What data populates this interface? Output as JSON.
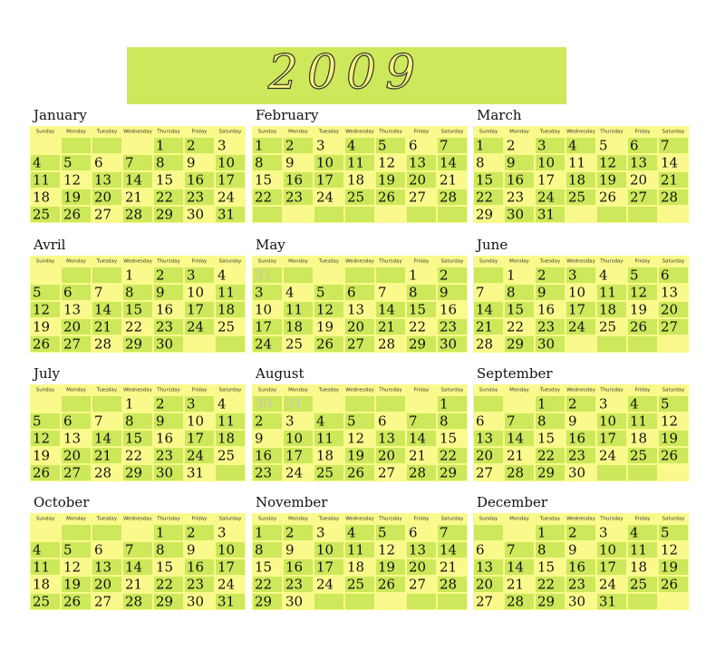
{
  "title": "2009",
  "day_headers": [
    "Sunday",
    "Monday",
    "Tuesday",
    "Wednesday",
    "Thursday",
    "Friday",
    "Saturday"
  ],
  "months": [
    {
      "name": "January",
      "weeks": [
        [
          null,
          null,
          null,
          null,
          1,
          2,
          3
        ],
        [
          4,
          5,
          6,
          7,
          8,
          9,
          10
        ],
        [
          11,
          12,
          13,
          14,
          15,
          16,
          17
        ],
        [
          18,
          19,
          20,
          21,
          22,
          23,
          24
        ],
        [
          25,
          26,
          27,
          28,
          29,
          30,
          31
        ]
      ]
    },
    {
      "name": "February",
      "weeks": [
        [
          1,
          2,
          3,
          4,
          5,
          6,
          7
        ],
        [
          8,
          9,
          10,
          11,
          12,
          13,
          14
        ],
        [
          15,
          16,
          17,
          18,
          19,
          20,
          21
        ],
        [
          22,
          23,
          24,
          25,
          26,
          27,
          28
        ],
        [
          null,
          null,
          null,
          null,
          null,
          null,
          null
        ]
      ]
    },
    {
      "name": "March",
      "weeks": [
        [
          1,
          2,
          3,
          4,
          5,
          6,
          7
        ],
        [
          8,
          9,
          10,
          11,
          12,
          13,
          14
        ],
        [
          15,
          16,
          17,
          18,
          19,
          20,
          21
        ],
        [
          22,
          23,
          24,
          25,
          26,
          27,
          28
        ],
        [
          29,
          30,
          31,
          null,
          null,
          null,
          null
        ]
      ]
    },
    {
      "name": "Avril",
      "weeks": [
        [
          null,
          null,
          null,
          1,
          2,
          3,
          4
        ],
        [
          5,
          6,
          7,
          8,
          9,
          10,
          11
        ],
        [
          12,
          13,
          14,
          15,
          16,
          17,
          18
        ],
        [
          19,
          20,
          21,
          22,
          23,
          24,
          25
        ],
        [
          26,
          27,
          28,
          29,
          30,
          null,
          null
        ]
      ]
    },
    {
      "name": "May",
      "weeks": [
        [
          31,
          null,
          null,
          null,
          null,
          1,
          2
        ],
        [
          3,
          4,
          5,
          6,
          7,
          8,
          9
        ],
        [
          10,
          11,
          12,
          13,
          14,
          15,
          16
        ],
        [
          17,
          18,
          19,
          20,
          21,
          22,
          23
        ],
        [
          24,
          25,
          26,
          27,
          28,
          29,
          30
        ]
      ]
    },
    {
      "name": "June",
      "weeks": [
        [
          null,
          1,
          2,
          3,
          4,
          5,
          6
        ],
        [
          7,
          8,
          9,
          10,
          11,
          12,
          13
        ],
        [
          14,
          15,
          16,
          17,
          18,
          19,
          20
        ],
        [
          21,
          22,
          23,
          24,
          25,
          26,
          27
        ],
        [
          28,
          29,
          30,
          null,
          null,
          null,
          null
        ]
      ]
    },
    {
      "name": "July",
      "weeks": [
        [
          null,
          null,
          null,
          1,
          2,
          3,
          4
        ],
        [
          5,
          6,
          7,
          8,
          9,
          10,
          11
        ],
        [
          12,
          13,
          14,
          15,
          16,
          17,
          18
        ],
        [
          19,
          20,
          21,
          22,
          23,
          24,
          25
        ],
        [
          26,
          27,
          28,
          29,
          30,
          31,
          null
        ]
      ]
    },
    {
      "name": "August",
      "weeks": [
        [
          30,
          31,
          null,
          null,
          null,
          null,
          1
        ],
        [
          2,
          3,
          4,
          5,
          6,
          7,
          8
        ],
        [
          9,
          10,
          11,
          12,
          13,
          14,
          15
        ],
        [
          16,
          17,
          18,
          19,
          20,
          21,
          22
        ],
        [
          23,
          24,
          25,
          26,
          27,
          28,
          29
        ]
      ]
    },
    {
      "name": "September",
      "weeks": [
        [
          null,
          null,
          1,
          2,
          3,
          4,
          5
        ],
        [
          6,
          7,
          8,
          9,
          10,
          11,
          12
        ],
        [
          13,
          14,
          15,
          16,
          17,
          18,
          19
        ],
        [
          20,
          21,
          22,
          23,
          24,
          25,
          26
        ],
        [
          27,
          28,
          29,
          30,
          null,
          null,
          null
        ]
      ]
    },
    {
      "name": "October",
      "weeks": [
        [
          null,
          null,
          null,
          null,
          1,
          2,
          3
        ],
        [
          4,
          5,
          6,
          7,
          8,
          9,
          10
        ],
        [
          11,
          12,
          13,
          14,
          15,
          16,
          17
        ],
        [
          18,
          19,
          20,
          21,
          22,
          23,
          24
        ],
        [
          25,
          26,
          27,
          28,
          29,
          30,
          31
        ]
      ]
    },
    {
      "name": "November",
      "weeks": [
        [
          1,
          2,
          3,
          4,
          5,
          6,
          7
        ],
        [
          8,
          9,
          10,
          11,
          12,
          13,
          14
        ],
        [
          15,
          16,
          17,
          18,
          19,
          20,
          21
        ],
        [
          22,
          23,
          24,
          25,
          26,
          27,
          28
        ],
        [
          29,
          30,
          null,
          null,
          null,
          null,
          null
        ]
      ]
    },
    {
      "name": "December",
      "weeks": [
        [
          null,
          null,
          1,
          2,
          3,
          4,
          5
        ],
        [
          6,
          7,
          8,
          9,
          10,
          11,
          12
        ],
        [
          13,
          14,
          15,
          16,
          17,
          18,
          19
        ],
        [
          20,
          21,
          22,
          23,
          24,
          25,
          26
        ],
        [
          27,
          28,
          29,
          30,
          31,
          null,
          null
        ]
      ]
    }
  ]
}
